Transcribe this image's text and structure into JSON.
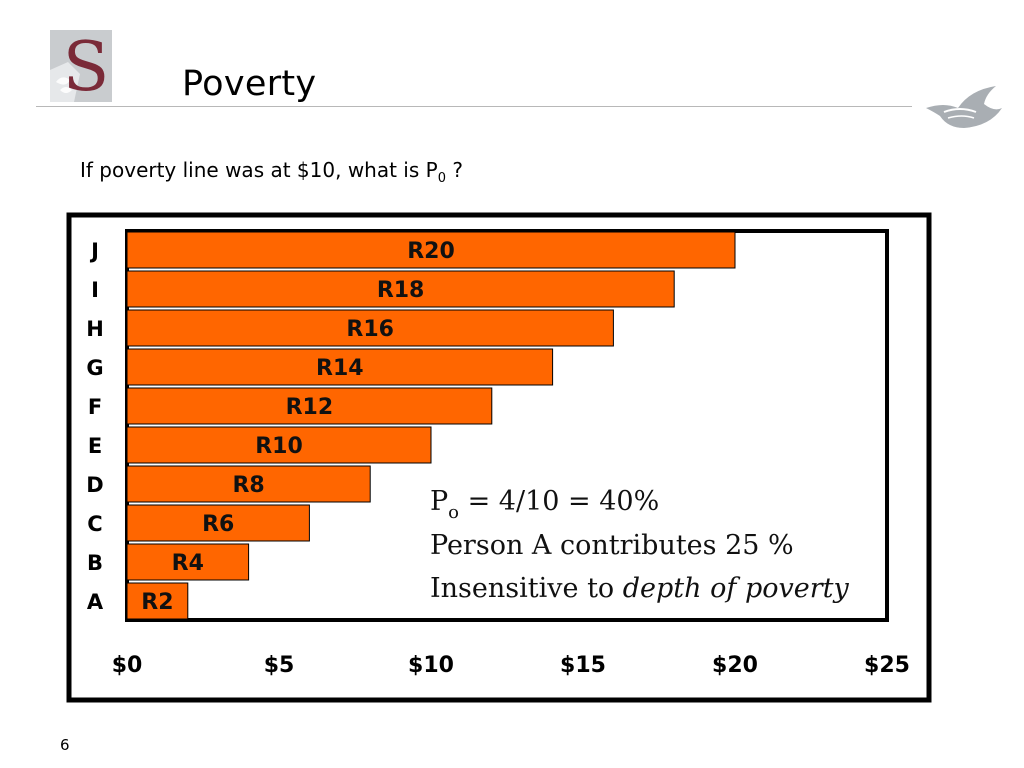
{
  "slide": {
    "title": "Poverty",
    "question_main": "If poverty line was at $10, what is P",
    "question_sub": "0",
    "question_end": " ?",
    "page_number": "6"
  },
  "logo": {
    "letter": "S"
  },
  "chart_data": {
    "type": "bar",
    "orientation": "horizontal",
    "categories": [
      "A",
      "B",
      "C",
      "D",
      "E",
      "F",
      "G",
      "H",
      "I",
      "J"
    ],
    "values": [
      2,
      4,
      6,
      8,
      10,
      12,
      14,
      16,
      18,
      20
    ],
    "bar_labels": [
      "R2",
      "R4",
      "R6",
      "R8",
      "R10",
      "R12",
      "R14",
      "R16",
      "R18",
      "R20"
    ],
    "x_ticks": [
      "$0",
      "$5",
      "$10",
      "$15",
      "$20",
      "$25"
    ],
    "xlim": [
      0,
      25
    ],
    "bar_color": "#ff6600",
    "annotations": {
      "p0_main": "P",
      "p0_sub": "o",
      "p0_rest": " = 4/10 = 40%",
      "line2": "Person A contributes 25 %",
      "line3_plain": "Insensitive to ",
      "line3_italic": "depth of poverty"
    }
  }
}
